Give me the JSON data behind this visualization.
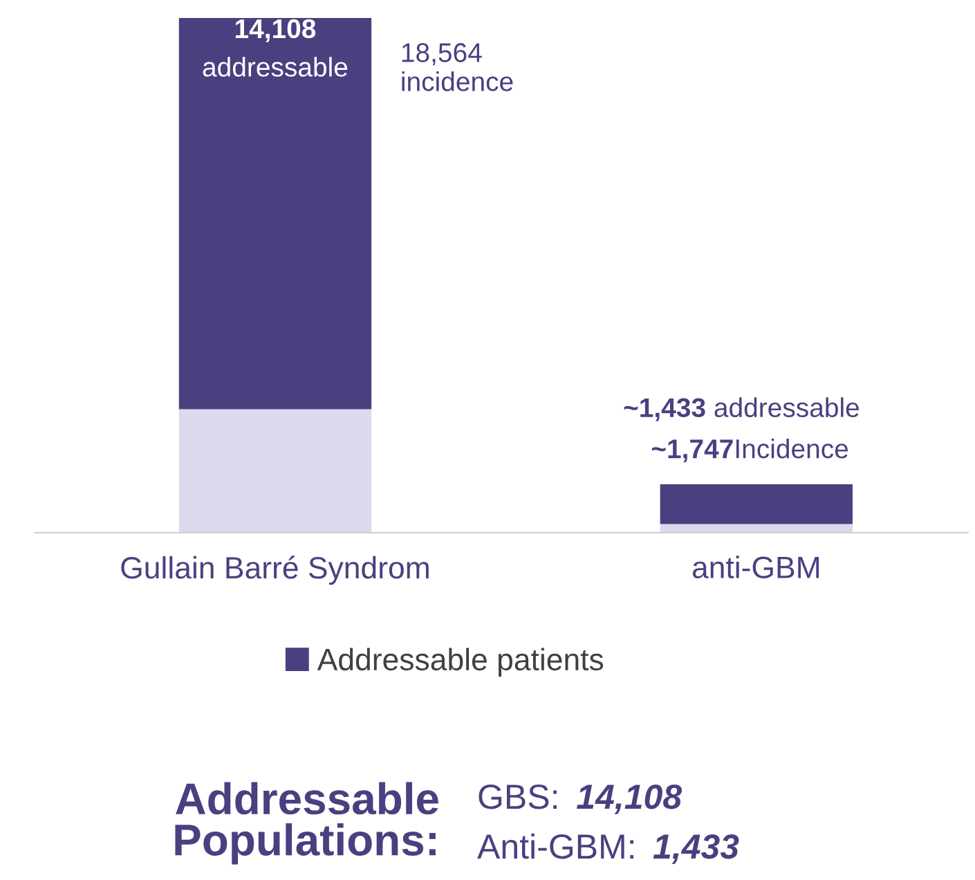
{
  "chart_data": {
    "type": "bar",
    "stacked": true,
    "categories": [
      "Gullain Barré Syndrom",
      "anti-GBM"
    ],
    "series": [
      {
        "color": "#dcd9ee",
        "values": [
          4456,
          314
        ]
      },
      {
        "name": "Addressable patients",
        "color": "#4b3f80",
        "values": [
          14108,
          1433
        ],
        "value_labels": [
          "14,108\naddressable",
          "~1,433 addressable"
        ]
      }
    ],
    "totals": [
      "18,564\nincidence",
      "~1,747Incidence"
    ],
    "legend": "bottom",
    "grid": false,
    "tick_labels": "x",
    "annotations": [
      "Addressable\nPopulations:",
      "GBS: 14,108",
      "Anti-GBM: 1,433"
    ]
  }
}
